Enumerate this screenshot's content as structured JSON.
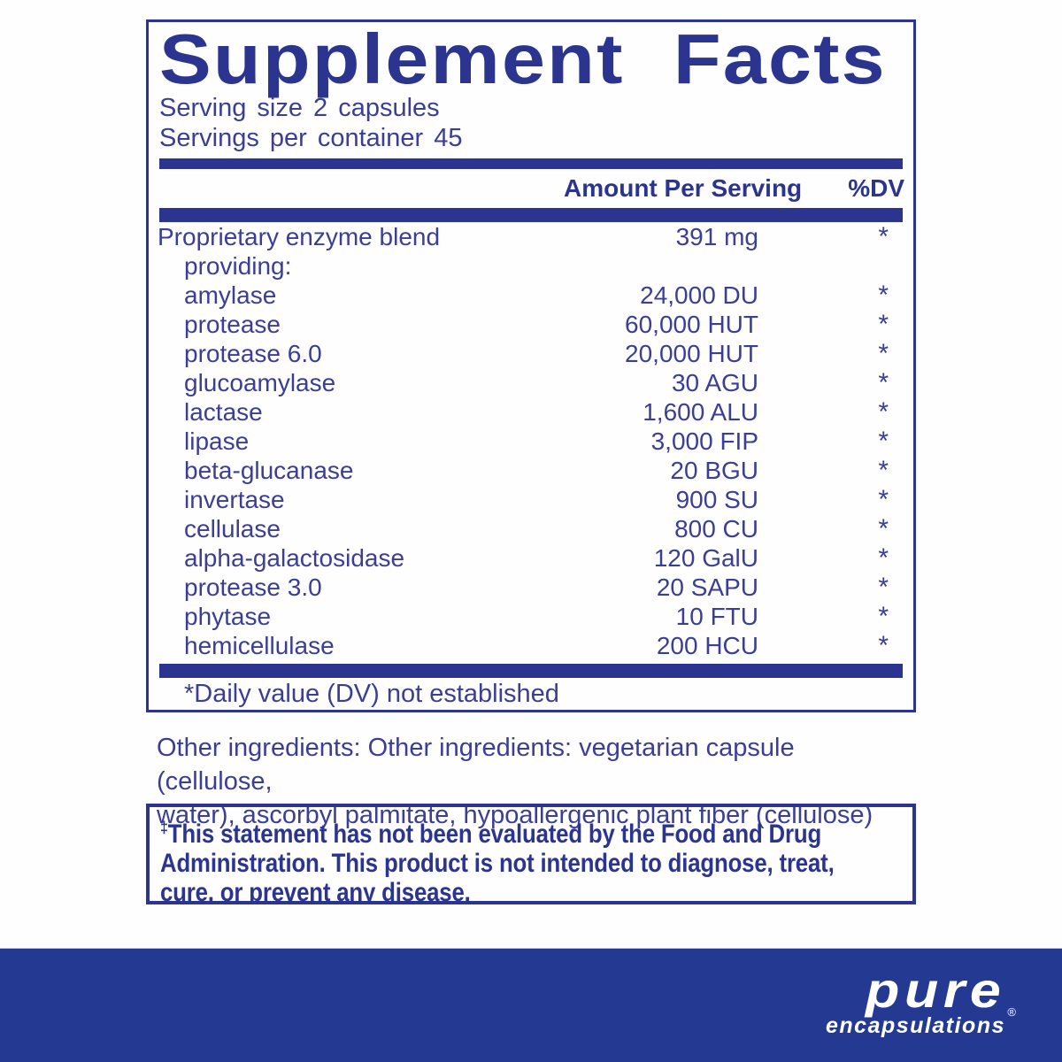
{
  "panel": {
    "title": "Supplement Facts",
    "serving_size_line": "Serving size  2 capsules",
    "servings_per_container_line": "Servings per container  45",
    "columns": {
      "amount": "Amount Per Serving",
      "dv": "%DV"
    },
    "rows": [
      {
        "name": "Proprietary enzyme blend",
        "amount": "391 mg",
        "dv": "*",
        "indent": false
      },
      {
        "name": "providing:",
        "amount": "",
        "dv": "",
        "indent": true
      },
      {
        "name": "amylase",
        "amount": "24,000 DU",
        "dv": "*",
        "indent": true
      },
      {
        "name": "protease",
        "amount": "60,000 HUT",
        "dv": "*",
        "indent": true
      },
      {
        "name": "protease 6.0",
        "amount": "20,000 HUT",
        "dv": "*",
        "indent": true
      },
      {
        "name": "glucoamylase",
        "amount": "30 AGU",
        "dv": "*",
        "indent": true
      },
      {
        "name": "lactase",
        "amount": "1,600 ALU",
        "dv": "*",
        "indent": true
      },
      {
        "name": "lipase",
        "amount": "3,000 FIP",
        "dv": "*",
        "indent": true
      },
      {
        "name": "beta-glucanase",
        "amount": "20 BGU",
        "dv": "*",
        "indent": true
      },
      {
        "name": "invertase",
        "amount": "900 SU",
        "dv": "*",
        "indent": true
      },
      {
        "name": "cellulase",
        "amount": "800 CU",
        "dv": "*",
        "indent": true
      },
      {
        "name": "alpha-galactosidase",
        "amount": "120 GalU",
        "dv": "*",
        "indent": true
      },
      {
        "name": "protease 3.0",
        "amount": "20 SAPU",
        "dv": "*",
        "indent": true
      },
      {
        "name": "phytase",
        "amount": "10 FTU",
        "dv": "*",
        "indent": true
      },
      {
        "name": "hemicellulase",
        "amount": "200 HCU",
        "dv": "*",
        "indent": true
      }
    ],
    "footnote": "*Daily value (DV) not established"
  },
  "other_ingredients": {
    "lines": [
      "Other ingredients: Other ingredients: vegetarian capsule (cellulose,",
      "water), ascorbyl palmitate, hypoallergenic plant fiber (cellulose)"
    ]
  },
  "disclaimer": {
    "dagger": "‡",
    "lines": [
      "This statement has not been evaluated by the Food and Drug",
      "Administration. This product is not intended to diagnose, treat,",
      "cure, or prevent any disease."
    ]
  },
  "brand": {
    "name": "pure",
    "subname": "encapsulations",
    "registered_mark": "®"
  },
  "colors": {
    "label_blue": "#2b3590",
    "text_blue": "#3c3e96",
    "band_blue": "#243a92",
    "background": "#fefefe",
    "logo_text": "#ffffff"
  }
}
